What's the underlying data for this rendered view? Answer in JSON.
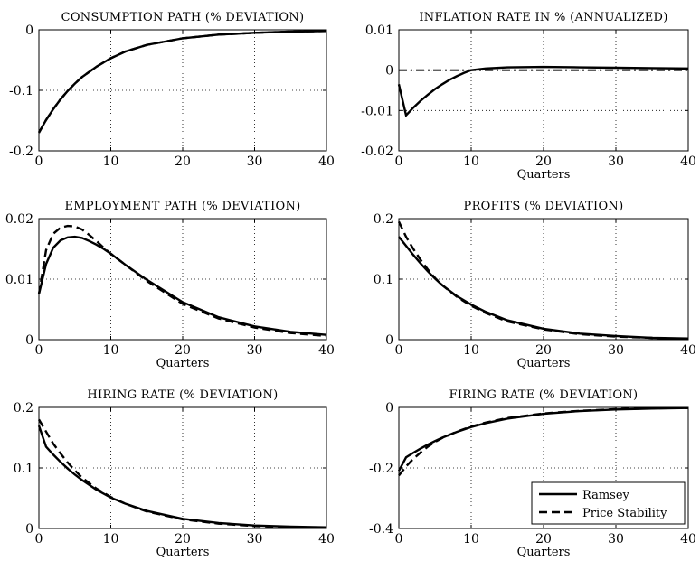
{
  "legend": {
    "ramsey": "Ramsey",
    "price_stability": "Price Stability"
  },
  "chart_data": [
    {
      "type": "line",
      "title": "CONSUMPTION PATH (% DEVIATION)",
      "xlabel": "",
      "xlim": [
        0,
        40
      ],
      "ylim": [
        -0.2,
        0
      ],
      "xticks": [
        0,
        10,
        20,
        30,
        40
      ],
      "yticks": [
        -0.2,
        -0.1,
        0
      ],
      "ytick_labels": [
        "-0.2",
        "-0.1",
        "0"
      ],
      "grid": true,
      "series": [
        {
          "key": "ramsey",
          "style": "solid",
          "x": [
            0,
            1,
            2,
            3,
            4,
            5,
            6,
            8,
            10,
            12,
            15,
            20,
            25,
            30,
            35,
            40
          ],
          "y": [
            -0.17,
            -0.149,
            -0.131,
            -0.115,
            -0.101,
            -0.089,
            -0.078,
            -0.061,
            -0.047,
            -0.036,
            -0.025,
            -0.014,
            -0.008,
            -0.005,
            -0.003,
            -0.002
          ]
        },
        {
          "key": "price_stability",
          "style": "dashed",
          "x": [
            0,
            1,
            2,
            3,
            4,
            5,
            6,
            8,
            10,
            12,
            15,
            20,
            25,
            30,
            35,
            40
          ],
          "y": [
            -0.17,
            -0.149,
            -0.131,
            -0.115,
            -0.101,
            -0.089,
            -0.078,
            -0.061,
            -0.047,
            -0.036,
            -0.025,
            -0.014,
            -0.008,
            -0.005,
            -0.003,
            -0.002
          ]
        }
      ]
    },
    {
      "type": "line",
      "title": "INFLATION RATE IN % (ANNUALIZED)",
      "xlabel": "Quarters",
      "xlim": [
        0,
        40
      ],
      "ylim": [
        -0.02,
        0.01
      ],
      "xticks": [
        0,
        10,
        20,
        30,
        40
      ],
      "yticks": [
        -0.02,
        -0.01,
        0,
        0.01
      ],
      "ytick_labels": [
        "-0.02",
        "-0.01",
        "0",
        "0.01"
      ],
      "grid": true,
      "series": [
        {
          "key": "ramsey",
          "style": "solid",
          "x": [
            0,
            1,
            2,
            3,
            4,
            5,
            6,
            7,
            8,
            9,
            10,
            12,
            15,
            20,
            25,
            30,
            35,
            40
          ],
          "y": [
            -0.0035,
            -0.0112,
            -0.0093,
            -0.0076,
            -0.0061,
            -0.0047,
            -0.0035,
            -0.0024,
            -0.0015,
            -0.0007,
            0.0,
            0.0004,
            0.0007,
            0.0008,
            0.0007,
            0.0006,
            0.0005,
            0.0004
          ]
        },
        {
          "key": "price_stability",
          "style": "dashdot",
          "x": [
            0,
            40
          ],
          "y": [
            0,
            0
          ]
        }
      ]
    },
    {
      "type": "line",
      "title": "EMPLOYMENT PATH (% DEVIATION)",
      "xlabel": "Quarters",
      "xlim": [
        0,
        40
      ],
      "ylim": [
        0,
        0.02
      ],
      "xticks": [
        0,
        10,
        20,
        30,
        40
      ],
      "yticks": [
        0,
        0.01,
        0.02
      ],
      "ytick_labels": [
        "0",
        "0.01",
        "0.02"
      ],
      "grid": true,
      "series": [
        {
          "key": "ramsey",
          "style": "solid",
          "x": [
            0,
            1,
            2,
            3,
            4,
            5,
            6,
            7,
            8,
            9,
            10,
            12,
            15,
            20,
            25,
            30,
            35,
            40
          ],
          "y": [
            0.0075,
            0.0125,
            0.0152,
            0.0164,
            0.0169,
            0.017,
            0.0168,
            0.0163,
            0.0157,
            0.015,
            0.0142,
            0.0124,
            0.0099,
            0.0062,
            0.0037,
            0.0022,
            0.0013,
            0.0008
          ]
        },
        {
          "key": "price_stability",
          "style": "dashed",
          "x": [
            0,
            1,
            2,
            3,
            4,
            5,
            6,
            7,
            8,
            9,
            10,
            12,
            15,
            20,
            25,
            30,
            35,
            40
          ],
          "y": [
            0.0075,
            0.0148,
            0.0175,
            0.0185,
            0.0188,
            0.0187,
            0.0182,
            0.0173,
            0.0163,
            0.0152,
            0.0142,
            0.0124,
            0.0097,
            0.0059,
            0.0035,
            0.002,
            0.0011,
            0.0006
          ]
        }
      ]
    },
    {
      "type": "line",
      "title": "PROFITS (% DEVIATION)",
      "xlabel": "Quarters",
      "xlim": [
        0,
        40
      ],
      "ylim": [
        0,
        0.2
      ],
      "xticks": [
        0,
        10,
        20,
        30,
        40
      ],
      "yticks": [
        0,
        0.1,
        0.2
      ],
      "ytick_labels": [
        "0",
        "0.1",
        "0.2"
      ],
      "grid": true,
      "series": [
        {
          "key": "ramsey",
          "style": "solid",
          "x": [
            0,
            1,
            2,
            3,
            4,
            5,
            6,
            8,
            10,
            12,
            15,
            20,
            25,
            30,
            35,
            40
          ],
          "y": [
            0.17,
            0.155,
            0.14,
            0.126,
            0.113,
            0.101,
            0.09,
            0.072,
            0.058,
            0.046,
            0.032,
            0.018,
            0.01,
            0.006,
            0.003,
            0.002
          ]
        },
        {
          "key": "price_stability",
          "style": "dashed",
          "x": [
            0,
            1,
            2,
            3,
            4,
            5,
            6,
            8,
            10,
            12,
            15,
            20,
            25,
            30,
            35,
            40
          ],
          "y": [
            0.195,
            0.17,
            0.15,
            0.132,
            0.116,
            0.102,
            0.09,
            0.071,
            0.056,
            0.044,
            0.03,
            0.017,
            0.009,
            0.005,
            0.003,
            0.001
          ]
        }
      ]
    },
    {
      "type": "line",
      "title": "HIRING RATE (% DEVIATION)",
      "xlabel": "Quarters",
      "xlim": [
        0,
        40
      ],
      "ylim": [
        0,
        0.2
      ],
      "xticks": [
        0,
        10,
        20,
        30,
        40
      ],
      "yticks": [
        0,
        0.1,
        0.2
      ],
      "ytick_labels": [
        "0",
        "0.1",
        "0.2"
      ],
      "grid": true,
      "series": [
        {
          "key": "ramsey",
          "style": "solid",
          "x": [
            0,
            1,
            2,
            3,
            4,
            5,
            6,
            8,
            10,
            12,
            15,
            20,
            25,
            30,
            35,
            40
          ],
          "y": [
            0.17,
            0.135,
            0.122,
            0.11,
            0.099,
            0.089,
            0.08,
            0.064,
            0.051,
            0.041,
            0.029,
            0.016,
            0.009,
            0.005,
            0.003,
            0.002
          ]
        },
        {
          "key": "price_stability",
          "style": "dashed",
          "x": [
            0,
            1,
            2,
            3,
            4,
            5,
            6,
            8,
            10,
            12,
            15,
            20,
            25,
            30,
            35,
            40
          ],
          "y": [
            0.18,
            0.16,
            0.14,
            0.124,
            0.109,
            0.096,
            0.084,
            0.066,
            0.052,
            0.041,
            0.028,
            0.015,
            0.008,
            0.004,
            0.002,
            0.001
          ]
        }
      ]
    },
    {
      "type": "line",
      "title": "FIRING RATE (% DEVIATION)",
      "xlabel": "Quarters",
      "xlim": [
        0,
        40
      ],
      "ylim": [
        -0.4,
        0
      ],
      "xticks": [
        0,
        10,
        20,
        30,
        40
      ],
      "yticks": [
        -0.4,
        -0.2,
        0
      ],
      "ytick_labels": [
        "-0.4",
        "-0.2",
        "0"
      ],
      "grid": true,
      "legend_position": "bottom-right",
      "series": [
        {
          "key": "ramsey",
          "style": "solid",
          "x": [
            0,
            1,
            2,
            3,
            4,
            5,
            6,
            8,
            10,
            12,
            15,
            20,
            25,
            30,
            35,
            40
          ],
          "y": [
            -0.21,
            -0.165,
            -0.15,
            -0.136,
            -0.123,
            -0.111,
            -0.1,
            -0.081,
            -0.065,
            -0.052,
            -0.037,
            -0.021,
            -0.012,
            -0.007,
            -0.004,
            -0.002
          ]
        },
        {
          "key": "price_stability",
          "style": "dashed",
          "x": [
            0,
            1,
            2,
            3,
            4,
            5,
            6,
            8,
            10,
            12,
            15,
            20,
            25,
            30,
            35,
            40
          ],
          "y": [
            -0.225,
            -0.195,
            -0.17,
            -0.149,
            -0.13,
            -0.114,
            -0.101,
            -0.08,
            -0.063,
            -0.05,
            -0.035,
            -0.02,
            -0.011,
            -0.006,
            -0.003,
            -0.002
          ]
        }
      ]
    }
  ]
}
